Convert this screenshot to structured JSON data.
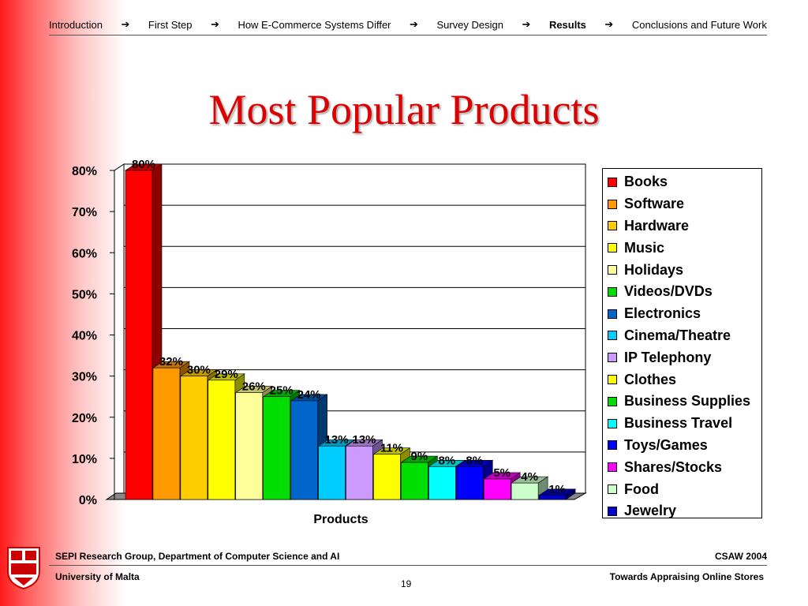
{
  "nav": {
    "items": [
      "Introduction",
      "First Step",
      "How E-Commerce Systems Differ",
      "Survey Design",
      "Results",
      "Conclusions and Future Work"
    ],
    "current": "Results",
    "arrow_icon": "arrow-right-icon"
  },
  "title": "Most Popular Products",
  "chart_data": {
    "type": "bar",
    "categories": [
      "Books",
      "Software",
      "Hardware",
      "Music",
      "Holidays",
      "Videos/DVDs",
      "Electronics",
      "Cinema/Theatre",
      "IP Telephony",
      "Clothes",
      "Business Supplies",
      "Business Travel",
      "Toys/Games",
      "Shares/Stocks",
      "Food",
      "Jewelry"
    ],
    "values": [
      80,
      32,
      30,
      29,
      26,
      25,
      24,
      13,
      13,
      11,
      9,
      8,
      8,
      5,
      4,
      1
    ],
    "data_labels": [
      "80%",
      "32%",
      "30%",
      "29%",
      "26%",
      "25%",
      "24%",
      "13%",
      "13%",
      "11%",
      "9%",
      "8%",
      "8%",
      "5%",
      "4%",
      "1%"
    ],
    "colors": [
      "#ff0000",
      "#ff9900",
      "#ffcc00",
      "#ffff00",
      "#ffff99",
      "#00dd00",
      "#0066cc",
      "#00ccff",
      "#cc99ff",
      "#ffff00",
      "#00dd00",
      "#00ffff",
      "#0000ff",
      "#ff00ff",
      "#ccffcc",
      "#0000cc"
    ],
    "ylim": [
      0,
      80
    ],
    "yticks": [
      "0%",
      "10%",
      "20%",
      "30%",
      "40%",
      "50%",
      "60%",
      "70%",
      "80%"
    ],
    "xlabel": "Products",
    "ylabel": "",
    "legend_position": "right",
    "grid": true,
    "style": "3d"
  },
  "footer": {
    "group": "SEPI Research Group, Department of Computer Science and AI",
    "conference": "CSAW 2004",
    "university": "University of Malta",
    "page": "19",
    "paper": "Towards Appraising Online Stores"
  }
}
